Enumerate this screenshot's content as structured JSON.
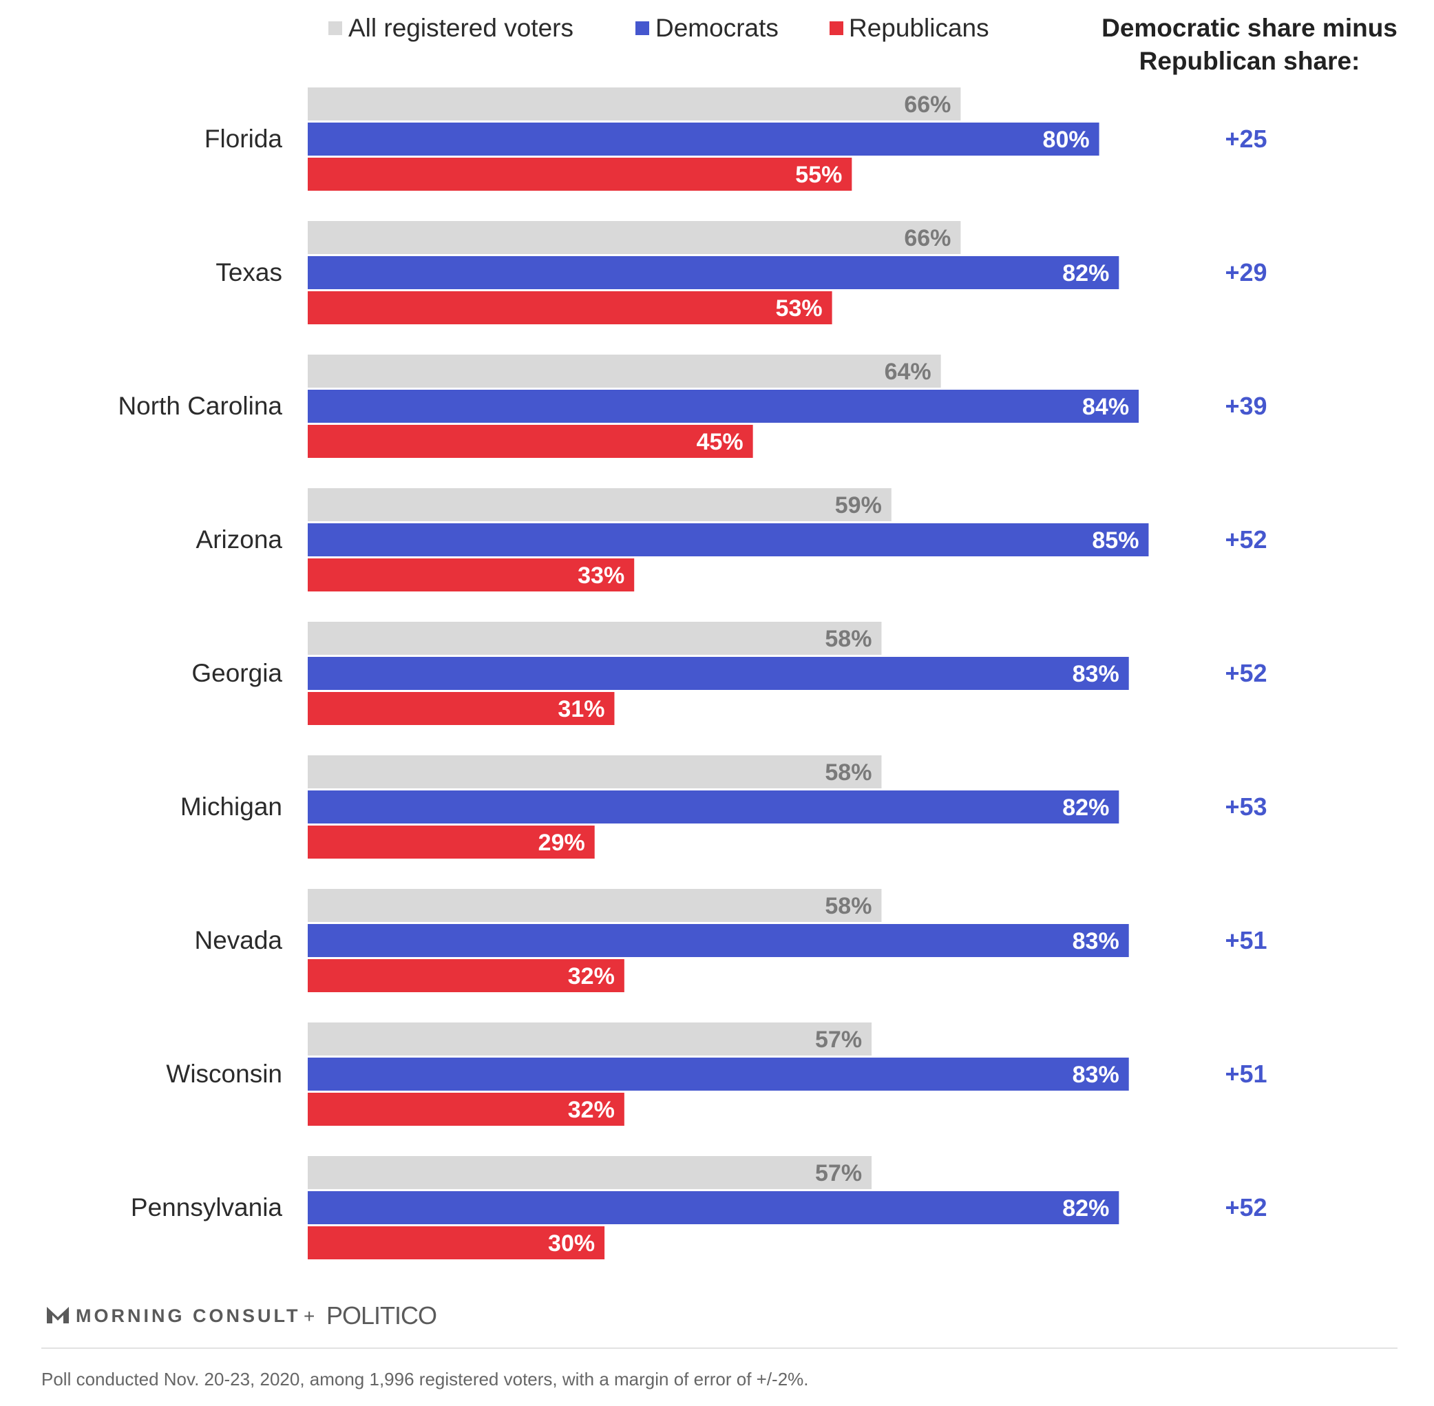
{
  "chart_data": {
    "type": "bar",
    "orientation": "horizontal",
    "title": "",
    "xlabel": "",
    "ylabel": "",
    "xlim": [
      0,
      100
    ],
    "categories": [
      "Florida",
      "Texas",
      "North Carolina",
      "Arizona",
      "Georgia",
      "Michigan",
      "Nevada",
      "Wisconsin",
      "Pennsylvania"
    ],
    "series": [
      {
        "name": "All registered voters",
        "color": "#d9d9d9",
        "label_color": "#7a7a7a",
        "values": [
          66,
          66,
          64,
          59,
          58,
          58,
          58,
          57,
          57
        ],
        "labels": [
          "66%",
          "66%",
          "64%",
          "59%",
          "58%",
          "58%",
          "58%",
          "57%",
          "57%"
        ]
      },
      {
        "name": "Democrats",
        "color": "#4557ce",
        "label_color": "#ffffff",
        "values": [
          80,
          82,
          84,
          85,
          83,
          82,
          83,
          83,
          82
        ],
        "labels": [
          "80%",
          "82%",
          "84%",
          "85%",
          "83%",
          "82%",
          "83%",
          "83%",
          "82%"
        ]
      },
      {
        "name": "Republicans",
        "color": "#e8313a",
        "label_color": "#ffffff",
        "values": [
          55,
          53,
          45,
          33,
          31,
          29,
          32,
          32,
          30
        ],
        "labels": [
          "55%",
          "53%",
          "45%",
          "33%",
          "31%",
          "29%",
          "32%",
          "32%",
          "30%"
        ]
      }
    ],
    "difference": {
      "header": [
        "Democratic share minus",
        "Republican share:"
      ],
      "values": [
        "+25",
        "+29",
        "+39",
        "+52",
        "+52",
        "+53",
        "+51",
        "+51",
        "+52"
      ],
      "color": "#4557ce"
    },
    "legend_position": "top",
    "grid": false
  },
  "footer": {
    "logo_morning_consult": "MORNING CONSULT",
    "logo_plus": "+",
    "logo_politico": "POLITICO",
    "note": "Poll conducted Nov. 20-23, 2020, among 1,996 registered voters, with a margin of error of +/-2%."
  }
}
